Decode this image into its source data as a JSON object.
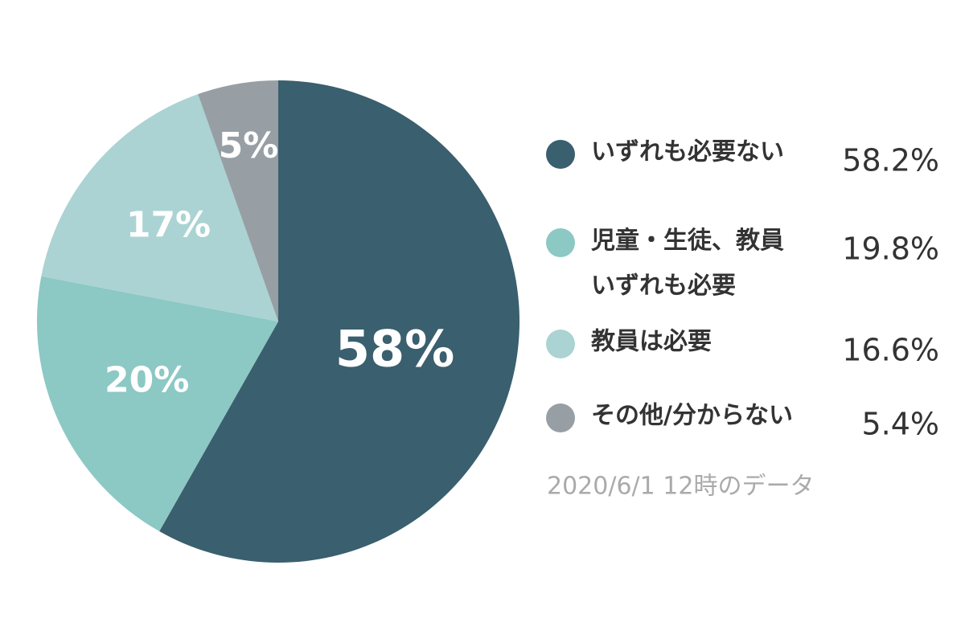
{
  "chart_data": {
    "type": "pie",
    "categories": [
      "いずれも必要ない",
      "児童・生徒、教員\nいずれも必要",
      "教員は必要",
      "その他/分からない"
    ],
    "values": [
      58.2,
      19.8,
      16.6,
      5.4
    ],
    "value_labels": [
      "58%",
      "20%",
      "17%",
      "5%"
    ],
    "legend_value_labels": [
      "58.2%",
      "19.8%",
      "16.6%",
      "5.4%"
    ],
    "colors": [
      "#3a5f6e",
      "#8cc8c4",
      "#abd3d3",
      "#979fa5"
    ],
    "note": "2020/6/1 12時のデータ",
    "legend": "right"
  }
}
